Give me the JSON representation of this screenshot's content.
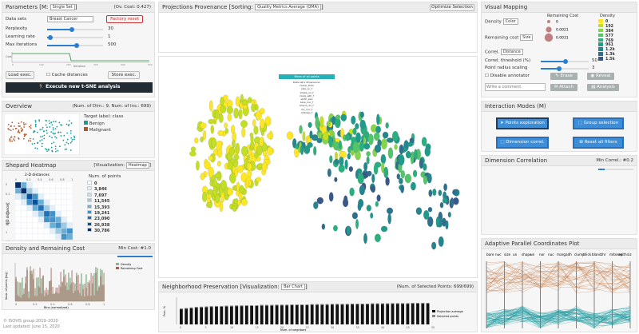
{
  "params": {
    "title": "Parameters [M:",
    "mode": "Single Set",
    "cost": "(Ov. Cost: 0.427)",
    "dataset_label": "Data sets",
    "dataset": "Breast Cancer",
    "factory_reset": "Factory reset",
    "perplexity_label": "Perplexity",
    "perplexity": "30",
    "lr_label": "Learning rate",
    "lr": "1",
    "iter_label": "Max iterations",
    "iter": "500",
    "load": "Load exec.",
    "cache": "Cache distances",
    "store": "Store exec.",
    "execute": "Execute new t-SNE analysis",
    "chart_ytick": "Cost",
    "chart_xlabel": "Iteration",
    "chart_xticks": [
      "0",
      "100",
      "200",
      "300",
      "400",
      "500"
    ]
  },
  "overview": {
    "title": "Overview",
    "info": "(Num. of Dim.: 9, Num. of Ins.: 699)",
    "target": "Target label: class",
    "classes": [
      {
        "name": "Benign",
        "color": "#1a9aa0"
      },
      {
        "name": "Malignant",
        "color": "#b5542a"
      }
    ]
  },
  "shepard": {
    "title": "Shepard Heatmap",
    "vis_label": "[Visualization:",
    "vis": "Heatmap",
    "xlabel": "2-D distances",
    "ylabel": "N-D distances",
    "xticks": [
      "0",
      "0.2",
      "0.4",
      "0.6",
      "0.8",
      "1"
    ],
    "yticks": [
      "0",
      "0.2",
      "0.4",
      "0.6",
      "0.8",
      "1",
      "1.2"
    ],
    "legend_title": "Num. of points",
    "legend": [
      "0",
      "3,846",
      "7,697",
      "11,545",
      "15,393",
      "19,241",
      "23,090",
      "26,938",
      "30,786"
    ],
    "legend_colors": [
      "#ffffff",
      "#e3eef8",
      "#c6dbef",
      "#9ecae1",
      "#6baed6",
      "#4292c6",
      "#2171b5",
      "#08519c",
      "#08306b"
    ]
  },
  "density": {
    "title": "Density and Remaining Cost",
    "min_cost": "Min Cost: #1.0",
    "legend": [
      "Density",
      "Remaining Cost"
    ],
    "ylabel": "Num. of points [log]",
    "xlabel": "Bins (normalized)",
    "xticks": [
      "0",
      "0.2",
      "0.4",
      "0.6",
      "0.8",
      "1"
    ]
  },
  "footer": {
    "line1": "© ISOVIS group 2019–2020",
    "line2": "Last updated: June 15, 2020"
  },
  "projections": {
    "title": "Projections Provenance",
    "sorting_label": "[Sorting:",
    "sorting": "Quality Metrics Average (QMA)",
    "optimize": "Optimize Selection"
  },
  "scatter": {
    "box_title": "Mean of all points",
    "box_lines": [
      "Data set's dimensions:",
      "clump_thick",
      "size_un_f",
      "shape_un_f",
      "marg_adh_f",
      "epith_size",
      "bare_nuc_f",
      "bland_chr_f",
      "nor_nuc_f",
      "mitoses_f"
    ]
  },
  "neighborhood": {
    "title": "Neighborhood Preservation",
    "vis_label": "[Visualization:",
    "vis": "Bar Chart",
    "selected": "(Num. of Selected Points: 699/699)",
    "ylabel": "Prec. %",
    "xlabel": "Num. of neighbors",
    "legend": [
      "Projection average",
      "Selected points"
    ],
    "bars": [
      0.62,
      0.64,
      0.66,
      0.68,
      0.69,
      0.7,
      0.71,
      0.72,
      0.72,
      0.73,
      0.73,
      0.74,
      0.74,
      0.75,
      0.75,
      0.75,
      0.76,
      0.76,
      0.76,
      0.77,
      0.77,
      0.77,
      0.78,
      0.78,
      0.78,
      0.78,
      0.79,
      0.79,
      0.79,
      0.79,
      0.8,
      0.8,
      0.8,
      0.8,
      0.81,
      0.81,
      0.81,
      0.81,
      0.82,
      0.82,
      0.82,
      0.82,
      0.83,
      0.83,
      0.83,
      0.83,
      0.84,
      0.84,
      0.84,
      0.84
    ]
  },
  "visual": {
    "title": "Visual Mapping",
    "density_label": "Density",
    "density_sel": "Color",
    "remaining_label": "Remaining cost",
    "remaining_sel": "Size",
    "correl_label": "Correl.",
    "correl_sel": "Distance",
    "threshold_label": "Correl. threshold (%)",
    "threshold": "50",
    "radius_label": "Point radius scaling",
    "radius": "3",
    "annotator": "Disable annotator",
    "erase": "Erase",
    "reveal": "Reveal",
    "comment_placeholder": "Write a comment.",
    "attach": "Attach",
    "analysis": "Analysis",
    "rc_title": "Remaining Cost",
    "rc_values": [
      "0",
      "0.0021",
      "0.0031"
    ],
    "dens_title": "Density",
    "dens_values": [
      "0",
      "192",
      "384",
      "577",
      "769",
      "961",
      "1.2k",
      "1.3k",
      "1.5k"
    ],
    "dens_colors": [
      "#fde725",
      "#c2df23",
      "#86d549",
      "#52c569",
      "#2ab07f",
      "#1e9b8a",
      "#25858e",
      "#2d708e",
      "#38588c"
    ]
  },
  "interaction": {
    "title": "Interaction Modes (M)",
    "points": "Points exploration",
    "group": "Group selection",
    "dimension": "Dimension correl.",
    "reset": "Reset all filters"
  },
  "dimcorr": {
    "title": "Dimension Correlation",
    "min": "Min Correl.: #0.2"
  },
  "apc": {
    "title": "Adaptive Parallel Coordinates Plot",
    "axes": [
      "bare",
      "nuc",
      "size",
      "un",
      "shape",
      "un",
      "nor",
      "nuc",
      "marg",
      "adh",
      "clump",
      "thick",
      "bland",
      "chr",
      "mitoses",
      "epith",
      "siz"
    ]
  }
}
